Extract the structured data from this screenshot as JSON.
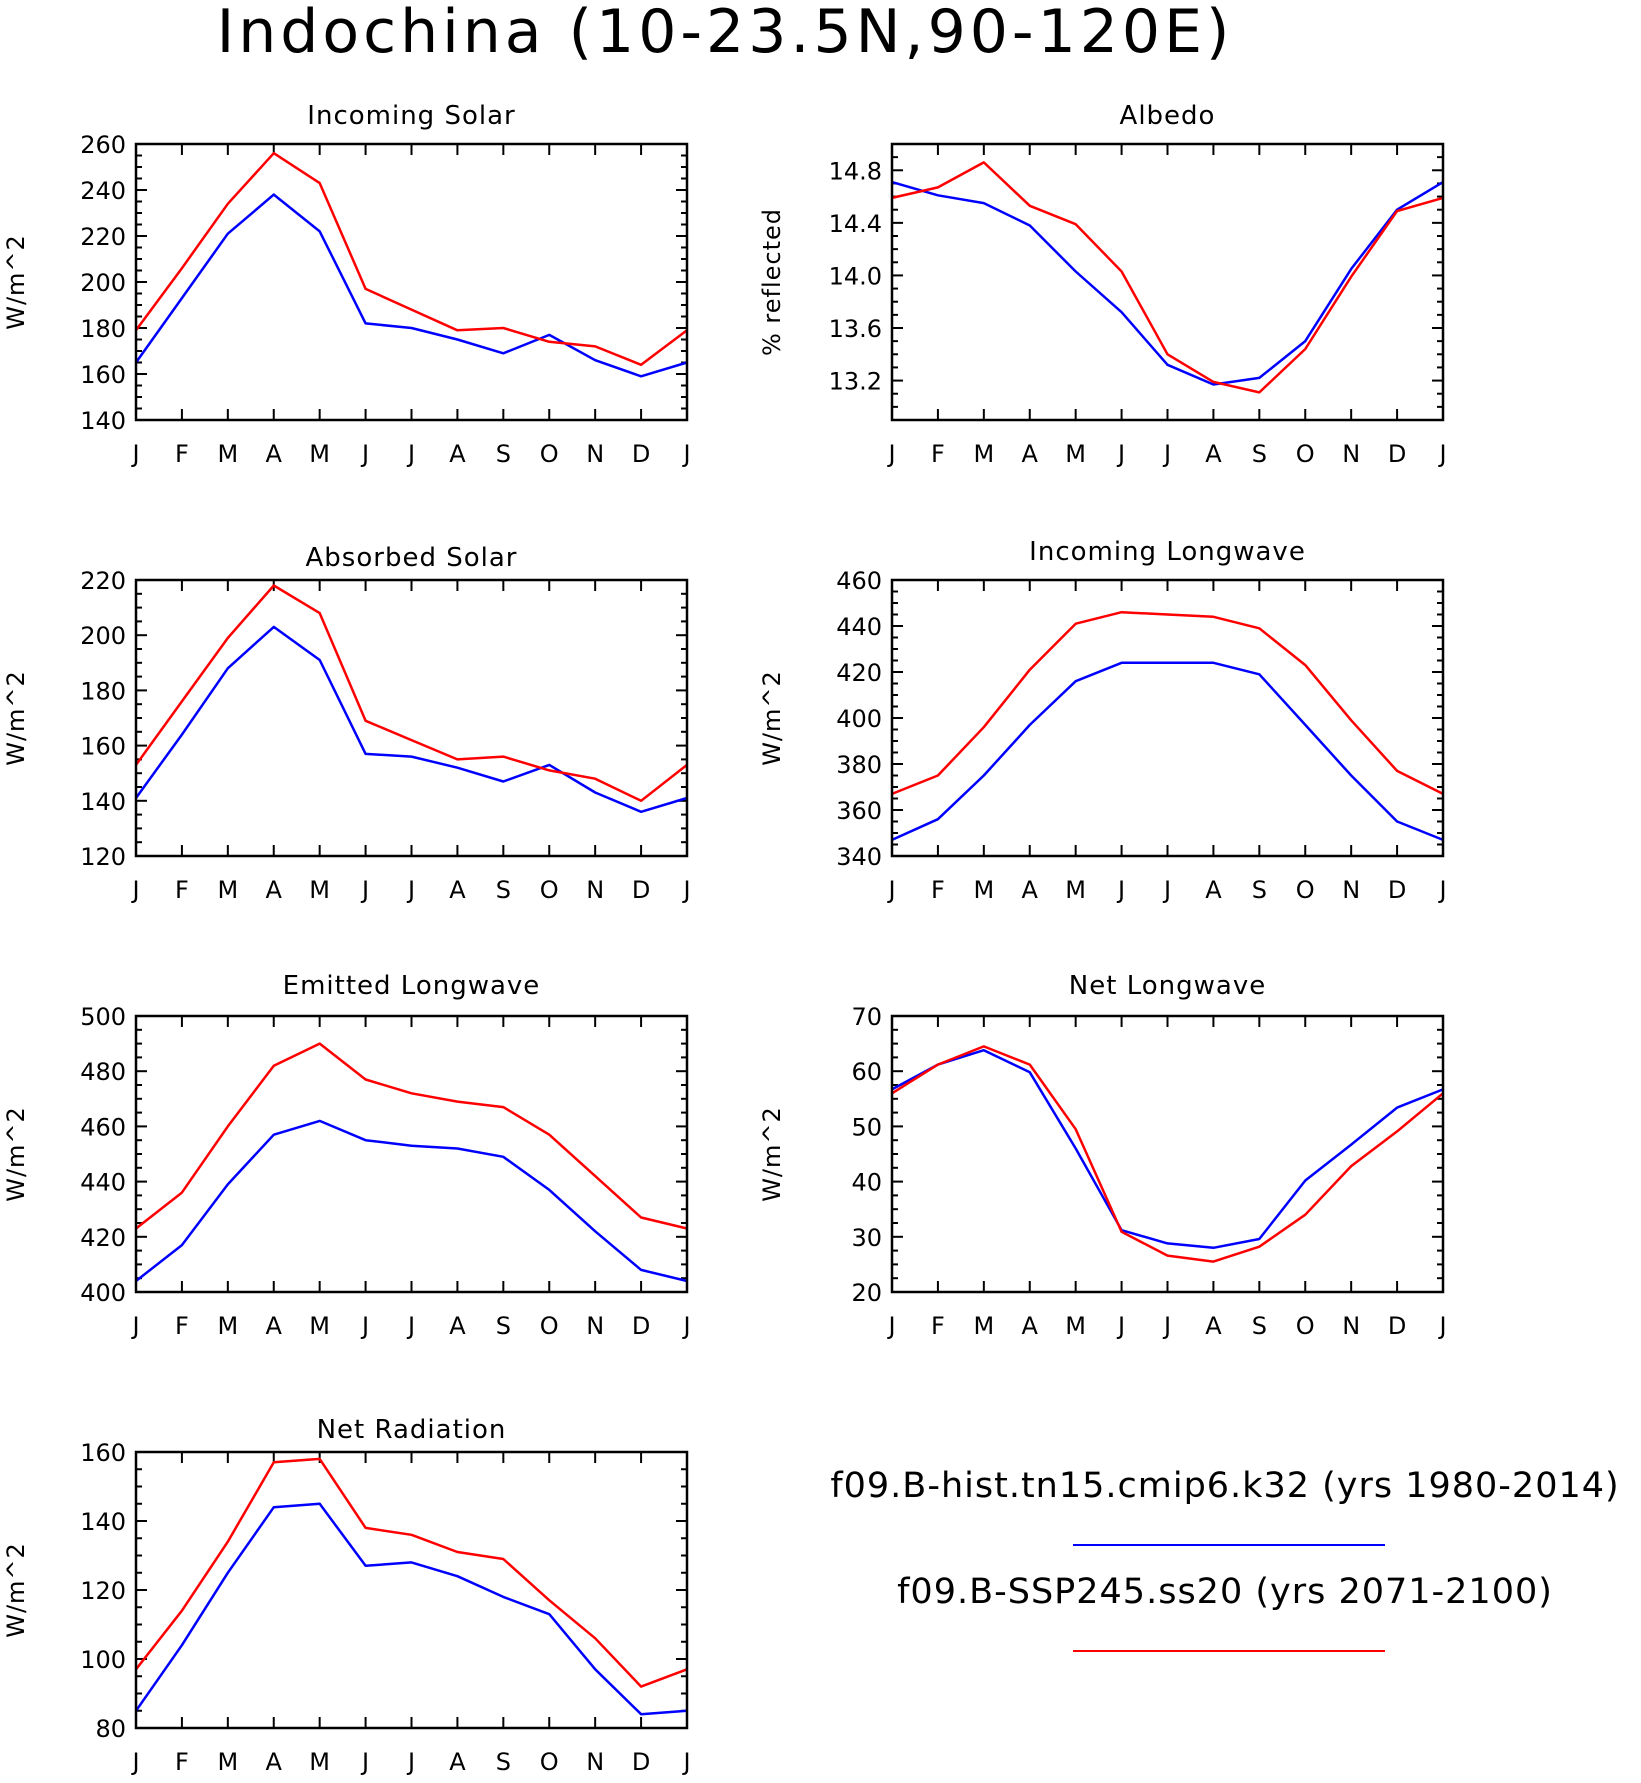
{
  "title": "Indochina (10-23.5N,90-120E)",
  "legend": [
    {
      "label": "f09.B-hist.tn15.cmip6.k32 (yrs 1980-2014)",
      "color": "#0000ff"
    },
    {
      "label": "f09.B-SSP245.ss20 (yrs 2071-2100)",
      "color": "#ff0000"
    }
  ],
  "chart_data": [
    {
      "type": "line",
      "title": "Incoming Solar",
      "ylabel": "W/m^2",
      "categories": [
        "J",
        "F",
        "M",
        "A",
        "M",
        "J",
        "J",
        "A",
        "S",
        "O",
        "N",
        "D",
        "J"
      ],
      "ylim": [
        140,
        260
      ],
      "yticks": [
        140,
        160,
        180,
        200,
        220,
        240,
        260
      ],
      "ytick_labels": [
        "140",
        "160",
        "180",
        "200",
        "220",
        "240",
        "260"
      ],
      "series": [
        {
          "color": "#0000ff",
          "values": [
            165,
            193,
            221,
            238,
            222,
            182,
            180,
            175,
            169,
            177,
            166,
            159,
            165
          ]
        },
        {
          "color": "#ff0000",
          "values": [
            179,
            206,
            234,
            256,
            243,
            197,
            188,
            179,
            180,
            174,
            172,
            164,
            179
          ]
        }
      ]
    },
    {
      "type": "line",
      "title": "Albedo",
      "ylabel": "% reflected",
      "categories": [
        "J",
        "F",
        "M",
        "A",
        "M",
        "J",
        "J",
        "A",
        "S",
        "O",
        "N",
        "D",
        "J"
      ],
      "ylim": [
        12.9,
        15.0
      ],
      "yticks": [
        13.2,
        13.6,
        14.0,
        14.4,
        14.8
      ],
      "ytick_labels": [
        "13.2",
        "13.6",
        "14.0",
        "14.4",
        "14.8"
      ],
      "series": [
        {
          "color": "#0000ff",
          "values": [
            14.71,
            14.61,
            14.55,
            14.38,
            14.03,
            13.72,
            13.32,
            13.17,
            13.22,
            13.5,
            14.05,
            14.5,
            14.71
          ]
        },
        {
          "color": "#ff0000",
          "values": [
            14.59,
            14.67,
            14.86,
            14.53,
            14.39,
            14.03,
            13.4,
            13.19,
            13.11,
            13.44,
            13.99,
            14.49,
            14.59
          ]
        }
      ]
    },
    {
      "type": "line",
      "title": "Absorbed Solar",
      "ylabel": "W/m^2",
      "categories": [
        "J",
        "F",
        "M",
        "A",
        "M",
        "J",
        "J",
        "A",
        "S",
        "O",
        "N",
        "D",
        "J"
      ],
      "ylim": [
        120,
        220
      ],
      "yticks": [
        120,
        140,
        160,
        180,
        200,
        220
      ],
      "ytick_labels": [
        "120",
        "140",
        "160",
        "180",
        "200",
        "220"
      ],
      "series": [
        {
          "color": "#0000ff",
          "values": [
            141,
            164,
            188,
            203,
            191,
            157,
            156,
            152,
            147,
            153,
            143,
            136,
            141
          ]
        },
        {
          "color": "#ff0000",
          "values": [
            153,
            176,
            199,
            218,
            208,
            169,
            162,
            155,
            156,
            151,
            148,
            140,
            153
          ]
        }
      ]
    },
    {
      "type": "line",
      "title": "Incoming Longwave",
      "ylabel": "W/m^2",
      "categories": [
        "J",
        "F",
        "M",
        "A",
        "M",
        "J",
        "J",
        "A",
        "S",
        "O",
        "N",
        "D",
        "J"
      ],
      "ylim": [
        340,
        460
      ],
      "yticks": [
        340,
        360,
        380,
        400,
        420,
        440,
        460
      ],
      "ytick_labels": [
        "340",
        "360",
        "380",
        "400",
        "420",
        "440",
        "460"
      ],
      "series": [
        {
          "color": "#0000ff",
          "values": [
            347,
            356,
            375,
            397,
            416,
            424,
            424,
            424,
            419,
            397,
            375,
            355,
            347
          ]
        },
        {
          "color": "#ff0000",
          "values": [
            367,
            375,
            396,
            421,
            441,
            446,
            445,
            444,
            439,
            423,
            399,
            377,
            367
          ]
        }
      ]
    },
    {
      "type": "line",
      "title": "Emitted Longwave",
      "ylabel": "W/m^2",
      "categories": [
        "J",
        "F",
        "M",
        "A",
        "M",
        "J",
        "J",
        "A",
        "S",
        "O",
        "N",
        "D",
        "J"
      ],
      "ylim": [
        400,
        500
      ],
      "yticks": [
        400,
        420,
        440,
        460,
        480,
        500
      ],
      "ytick_labels": [
        "400",
        "420",
        "440",
        "460",
        "480",
        "500"
      ],
      "series": [
        {
          "color": "#0000ff",
          "values": [
            404,
            417,
            439,
            457,
            462,
            455,
            453,
            452,
            449,
            437,
            422,
            408,
            404
          ]
        },
        {
          "color": "#ff0000",
          "values": [
            423,
            436,
            460,
            482,
            490,
            477,
            472,
            469,
            467,
            457,
            442,
            427,
            423
          ]
        }
      ]
    },
    {
      "type": "line",
      "title": "Net Longwave",
      "ylabel": "W/m^2",
      "categories": [
        "J",
        "F",
        "M",
        "A",
        "M",
        "J",
        "J",
        "A",
        "S",
        "O",
        "N",
        "D",
        "J"
      ],
      "ylim": [
        20,
        70
      ],
      "yticks": [
        20,
        30,
        40,
        50,
        60,
        70
      ],
      "ytick_labels": [
        "20",
        "30",
        "40",
        "50",
        "60",
        "70"
      ],
      "series": [
        {
          "color": "#0000ff",
          "values": [
            56.7,
            61.2,
            63.8,
            59.8,
            46.0,
            31.2,
            28.8,
            28.0,
            29.6,
            40.2,
            46.7,
            53.4,
            56.7
          ]
        },
        {
          "color": "#ff0000",
          "values": [
            56.0,
            61.2,
            64.5,
            61.2,
            49.5,
            30.9,
            26.6,
            25.5,
            28.2,
            34.0,
            42.8,
            49.1,
            56.0
          ]
        }
      ]
    },
    {
      "type": "line",
      "title": "Net Radiation",
      "ylabel": "W/m^2",
      "categories": [
        "J",
        "F",
        "M",
        "A",
        "M",
        "J",
        "J",
        "A",
        "S",
        "O",
        "N",
        "D",
        "J"
      ],
      "ylim": [
        80,
        160
      ],
      "yticks": [
        80,
        100,
        120,
        140,
        160
      ],
      "ytick_labels": [
        "80",
        "100",
        "120",
        "140",
        "160"
      ],
      "series": [
        {
          "color": "#0000ff",
          "values": [
            85,
            104,
            125,
            144,
            145,
            127,
            128,
            124,
            118,
            113,
            97,
            84,
            85
          ]
        },
        {
          "color": "#ff0000",
          "values": [
            97,
            114,
            134,
            157,
            158,
            138,
            136,
            131,
            129,
            117,
            106,
            92,
            97
          ]
        }
      ]
    }
  ]
}
